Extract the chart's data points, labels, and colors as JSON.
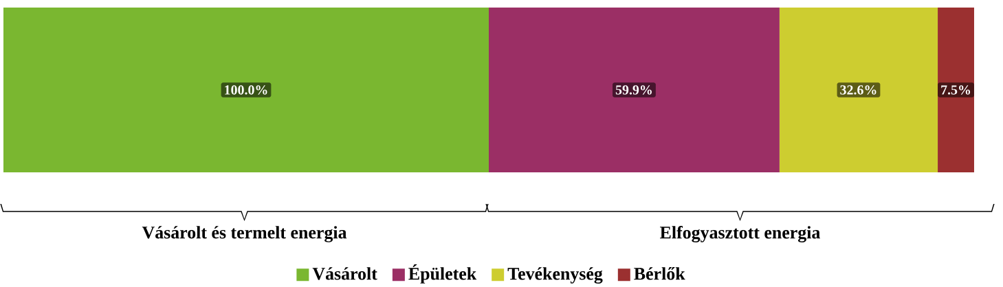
{
  "chart_data": {
    "type": "bar",
    "orientation": "horizontal",
    "stacked": true,
    "categories": [
      null
    ],
    "series": [
      {
        "name": "Vásárolt",
        "color": "#7ab730",
        "values": [
          100.0
        ],
        "value_labels": [
          "100.0%"
        ]
      },
      {
        "name": "Épületek",
        "color": "#9b2f65",
        "values": [
          59.9
        ],
        "value_labels": [
          "59.9%"
        ]
      },
      {
        "name": "Tevékenység",
        "color": "#cdcd30",
        "values": [
          32.6
        ],
        "value_labels": [
          "32.6%"
        ]
      },
      {
        "name": "Bérlők",
        "color": "#9b3030",
        "values": [
          7.5
        ],
        "value_labels": [
          "7.5%"
        ]
      }
    ],
    "annotations": [
      "Vásárolt és termelt energia",
      "Elfogyasztott energia"
    ],
    "legend": "bottom"
  }
}
